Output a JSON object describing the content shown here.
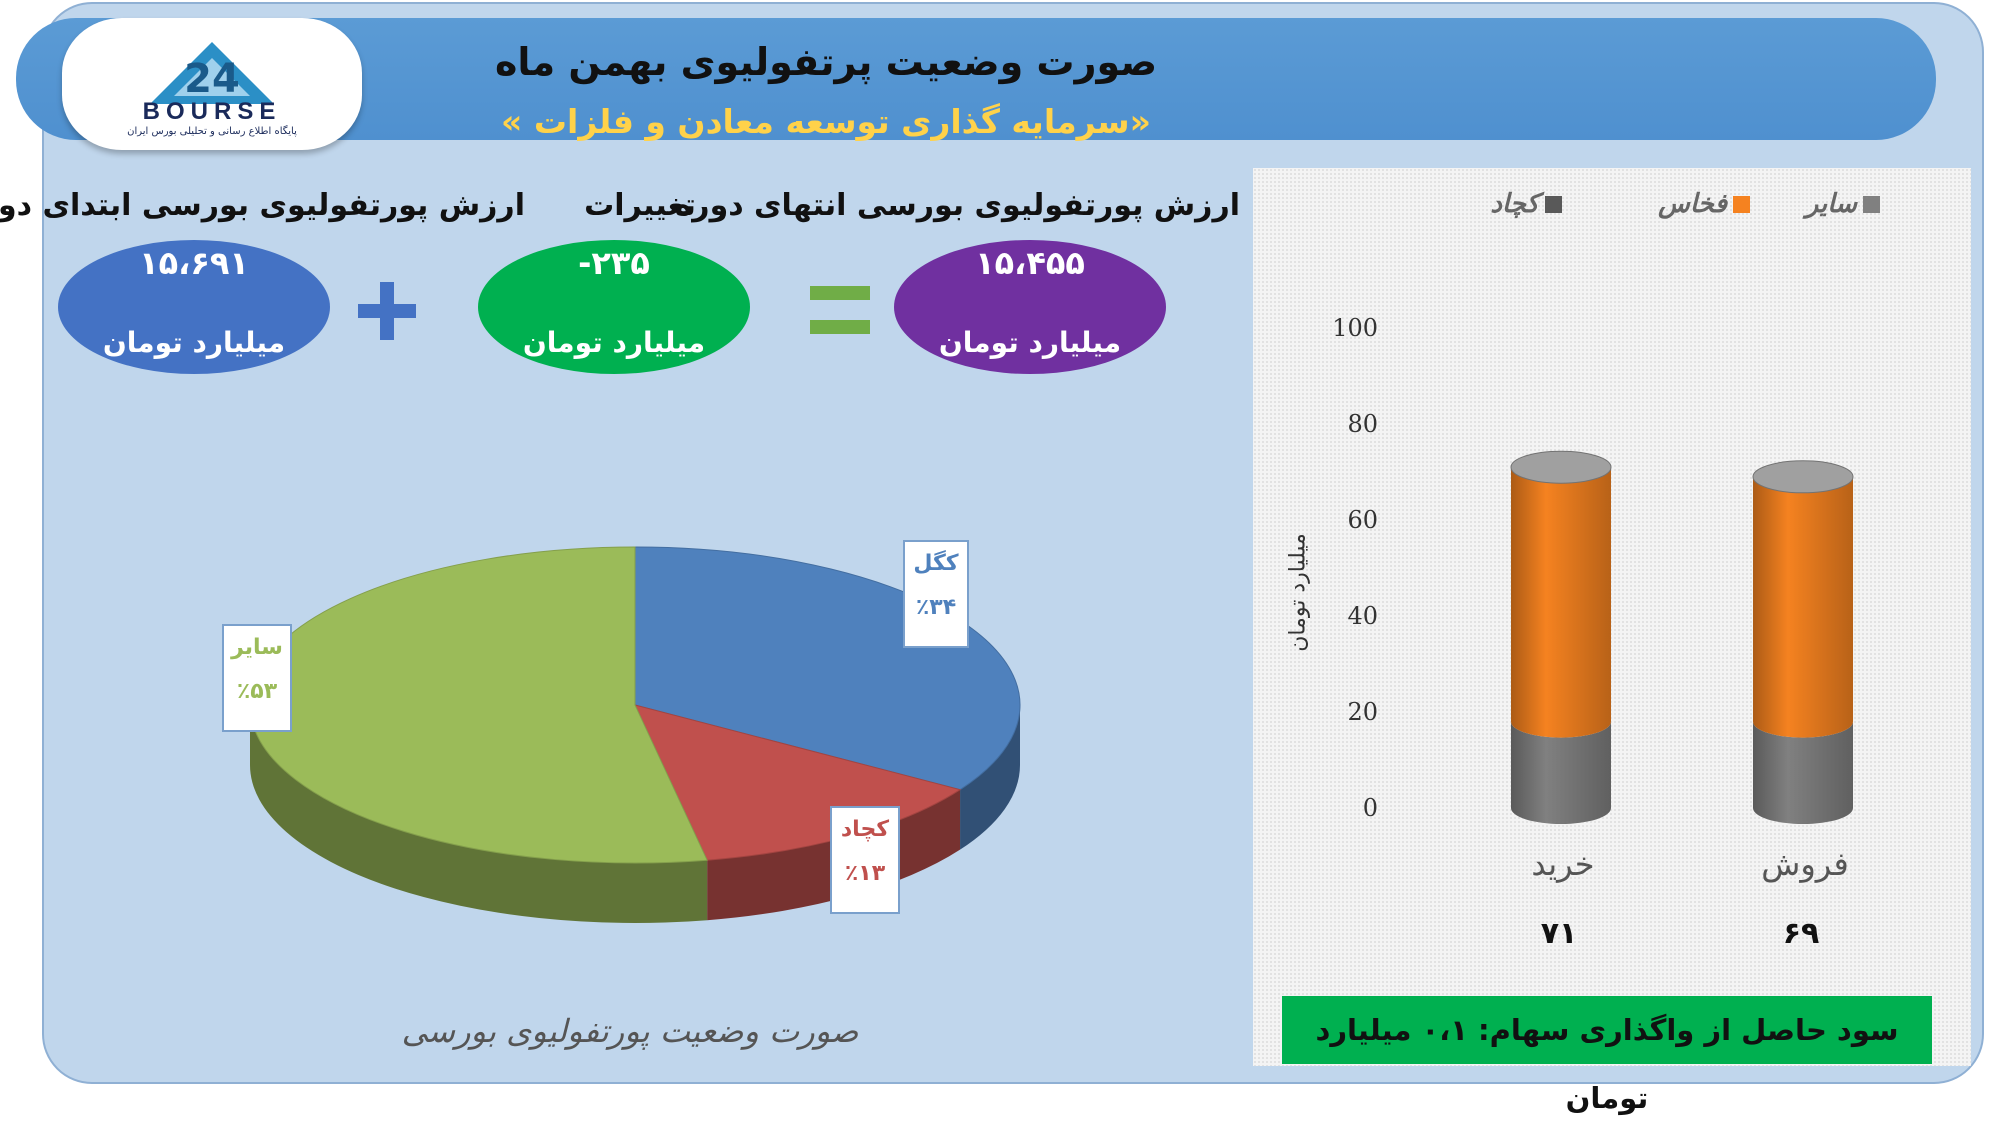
{
  "header": {
    "title": "صورت وضعیت پرتفولیوی بهمن ماه",
    "subtitle": "«سرمایه گذاری توسعه معادن و فلزات »"
  },
  "logo": {
    "text": "BOURSE",
    "mark": "24",
    "tagline": "پایگاه اطلاع رسانی و تحلیلی بورس ایران"
  },
  "summary": {
    "start": {
      "label": "ارزش پورتفولیوی بورسی ابتدای دوره",
      "value": "۱۵،۶۹۱",
      "unit": "میلیارد تومان",
      "color": "#4472c4"
    },
    "change": {
      "label": "تغییرات",
      "value": "-۲۳۵",
      "unit": "میلیارد تومان",
      "color": "#00b050"
    },
    "end": {
      "label": "ارزش پورتفولیوی بورسی انتهای دوره",
      "value": "۱۵،۴۵۵",
      "unit": "میلیارد تومان",
      "color": "#7030a0"
    }
  },
  "chart_data": [
    {
      "type": "pie",
      "title": "صورت وضعیت پورتفولیوی بورسی",
      "labels": [
        "کگل",
        "کچاد",
        "سایر"
      ],
      "values": [
        34,
        13,
        53
      ],
      "value_labels": [
        "٪۳۴",
        "٪۱۳",
        "٪۵۳"
      ],
      "colors": [
        "#4f81bd",
        "#c0504d",
        "#9bbb59"
      ],
      "label_colors": [
        "#4f81bd",
        "#c0504d",
        "#9bbb59"
      ],
      "style": "3d"
    },
    {
      "type": "bar",
      "stacked": true,
      "style": "3d-cylinder",
      "categories": [
        "خرید",
        "فروش"
      ],
      "category_totals": [
        "۷۱",
        "۶۹"
      ],
      "series": [
        {
          "name": "سایر",
          "values": [
            18,
            18
          ],
          "color": "#808080"
        },
        {
          "name": "فخاس",
          "values": [
            53,
            51
          ],
          "color": "#f58220"
        },
        {
          "name": "کچاد",
          "values": [
            0,
            0
          ],
          "color": "#595959"
        }
      ],
      "legend_order": [
        "سایر",
        "فخاس",
        "کچاد"
      ],
      "ylabel": "میلیارد تومان",
      "ylim": [
        0,
        100
      ],
      "yticks": [
        0,
        20,
        40,
        60,
        80,
        100
      ],
      "legend": "top"
    }
  ],
  "footer": {
    "profit": "سود حاصل از واگذاری سهام: ۰،۱ میلیارد تومان"
  }
}
